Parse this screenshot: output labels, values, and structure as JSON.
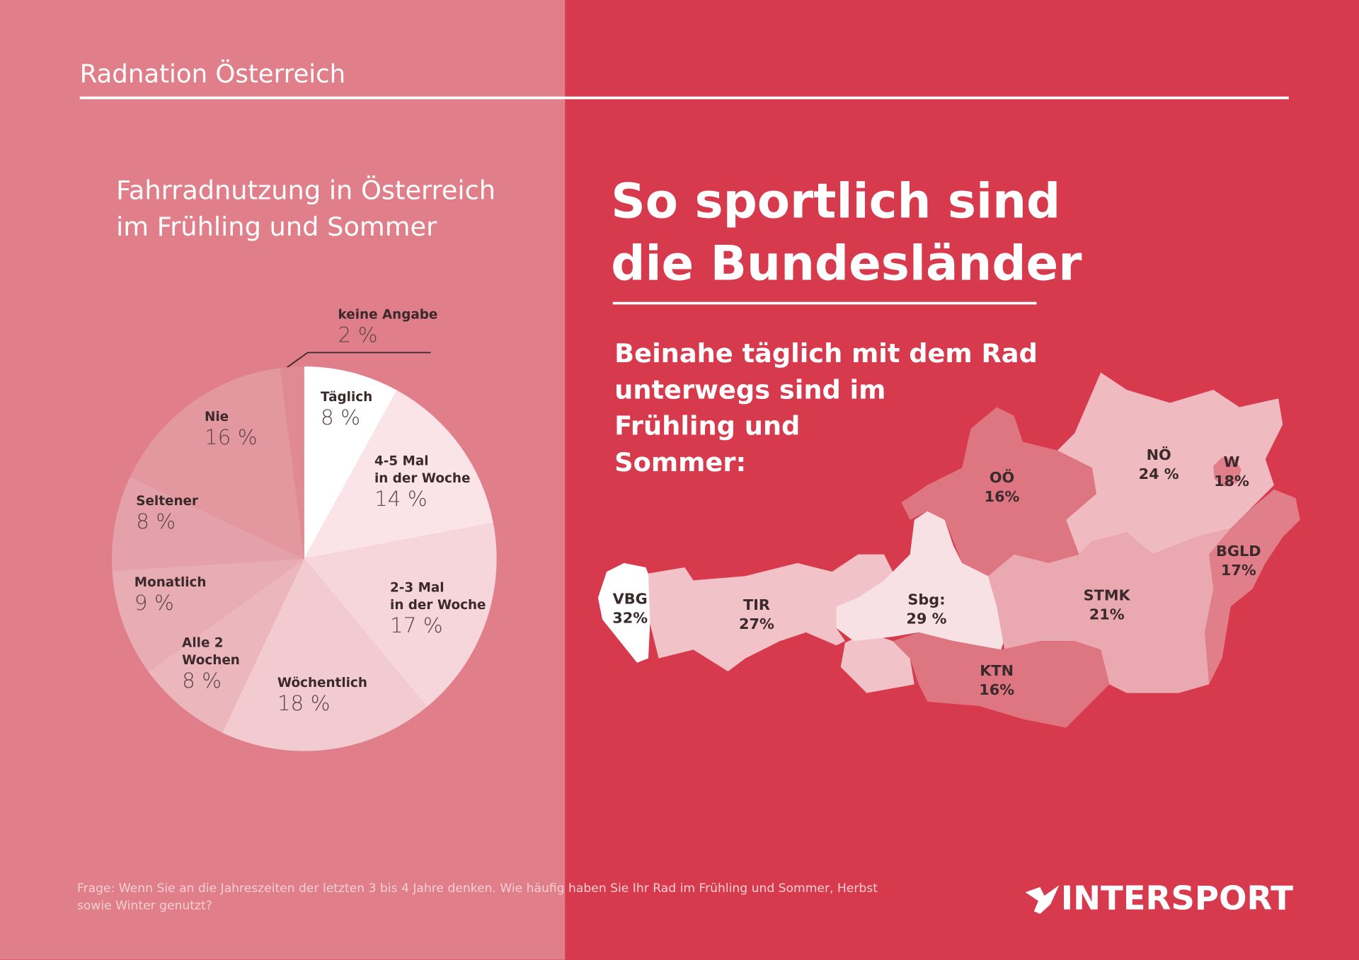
{
  "header": {
    "title": "Radnation Österreich"
  },
  "chart_data": {
    "type": "pie",
    "title": "Fahrradnutzung in Österreich\nim Frühling und Sommer",
    "categories": [
      "Täglich",
      "4-5 Mal\nin der Woche",
      "2-3 Mal\nin der Woche",
      "Wöchentlich",
      "Alle 2\nWochen",
      "Monatlich",
      "Seltener",
      "Nie",
      "keine Angabe"
    ],
    "values": [
      8,
      14,
      17,
      18,
      8,
      9,
      8,
      16,
      2
    ],
    "value_labels": [
      "8 %",
      "14 %",
      "17 %",
      "18 %",
      "8 %",
      "9 %",
      "8 %",
      "16 %",
      "2 %"
    ],
    "colors": [
      "#ffffff",
      "#fbe4e7",
      "#f6d6da",
      "#f2cbd0",
      "#ebb7bd",
      "#e8acb3",
      "#e5a1a9",
      "#e3979f",
      "#e08a93"
    ]
  },
  "map": {
    "title": "So sportlich sind\ndie Bundesländer",
    "subtitle": "Beinahe täglich mit dem Rad\nunterwegs sind im\nFrühling und\nSommer:",
    "regions": [
      {
        "name": "VBG",
        "value": "32%",
        "color": "#ffffff"
      },
      {
        "name": "TIR",
        "value": "27%",
        "color": "#f1c3c8"
      },
      {
        "name": "Sbg:",
        "value": "29 %",
        "color": "#f8e1e4"
      },
      {
        "name": "OÖ",
        "value": "16%",
        "color": "#de7682"
      },
      {
        "name": "NÖ",
        "value": "24 %",
        "color": "#efbac0"
      },
      {
        "name": "W",
        "value": "18%",
        "color": "#e07e89"
      },
      {
        "name": "BGLD",
        "value": "17%",
        "color": "#e07e89"
      },
      {
        "name": "STMK",
        "value": "21%",
        "color": "#eaa9b0"
      },
      {
        "name": "KTN",
        "value": "16%",
        "color": "#de7682"
      }
    ]
  },
  "footer": {
    "question": "Frage: Wenn Sie an die Jahreszeiten der letzten 3 bis 4 Jahre denken. Wie häufig haben Sie Ihr Rad im Frühling und Sommer, Herbst sowie Winter genutzt?",
    "logo": "INTERSPORT"
  }
}
